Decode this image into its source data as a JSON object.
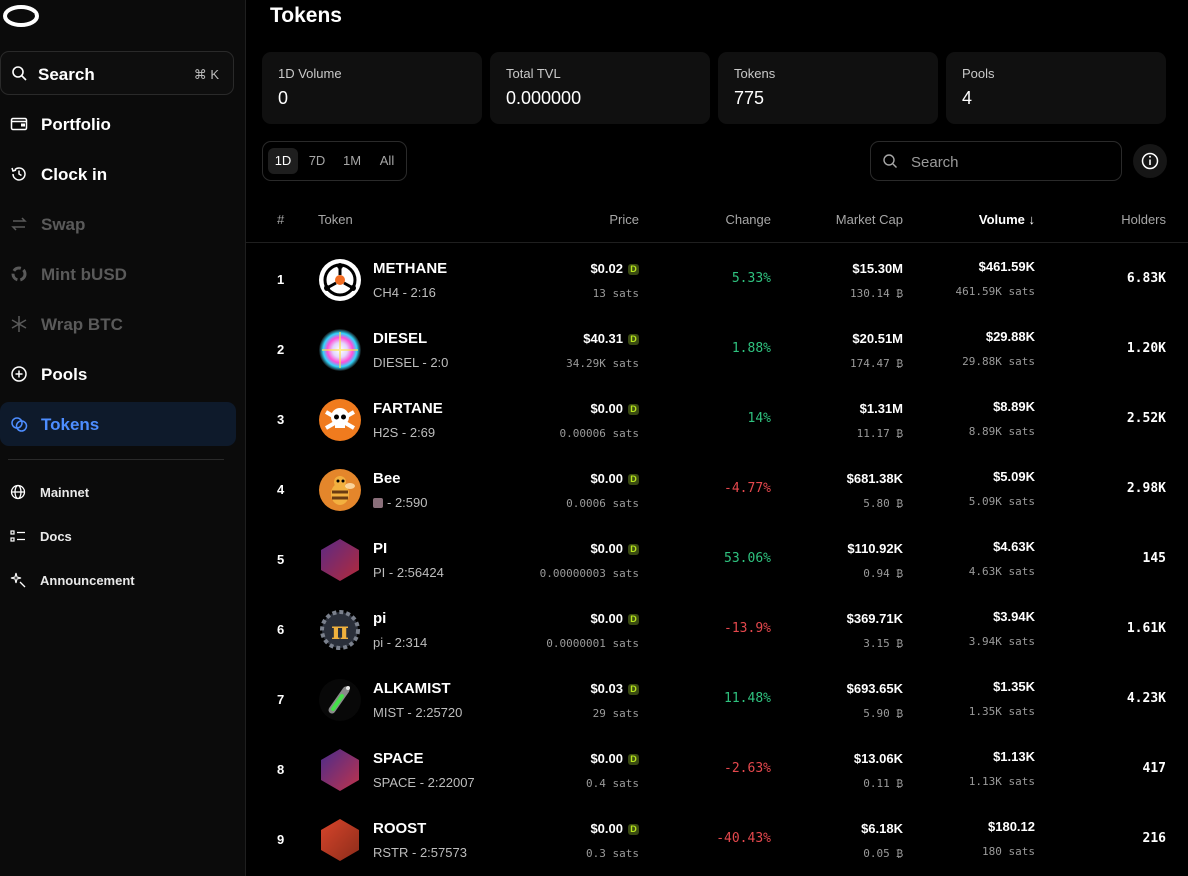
{
  "sidebar": {
    "search_label": "Search",
    "search_shortcut": "⌘ K",
    "items": [
      {
        "label": "Portfolio",
        "icon": "wallet-icon"
      },
      {
        "label": "Clock in",
        "icon": "clock-history-icon"
      },
      {
        "label": "Swap",
        "icon": "swap-icon"
      },
      {
        "label": "Mint bUSD",
        "icon": "mint-icon"
      },
      {
        "label": "Wrap BTC",
        "icon": "snowflake-icon"
      },
      {
        "label": "Pools",
        "icon": "plus-circle-icon"
      },
      {
        "label": "Tokens",
        "icon": "coins-icon"
      }
    ],
    "footer": [
      {
        "label": "Mainnet",
        "icon": "globe-icon"
      },
      {
        "label": "Docs",
        "icon": "list-icon"
      },
      {
        "label": "Announcement",
        "icon": "sparkle-icon"
      }
    ]
  },
  "page_title": "Tokens",
  "stats": [
    {
      "label": "1D Volume",
      "value": "0"
    },
    {
      "label": "Total TVL",
      "value": "0.000000"
    },
    {
      "label": "Tokens",
      "value": "775"
    },
    {
      "label": "Pools",
      "value": "4"
    }
  ],
  "ranges": [
    "1D",
    "7D",
    "1M",
    "All"
  ],
  "search_placeholder": "Search",
  "columns": {
    "rank": "#",
    "token": "Token",
    "price": "Price",
    "change": "Change",
    "market_cap": "Market Cap",
    "volume": "Volume ↓",
    "holders": "Holders"
  },
  "colors": {
    "accent": "#4d8dff",
    "positive": "#2fc27f",
    "negative": "#e5484d"
  },
  "tokens": [
    {
      "rank": "1",
      "name": "METHANE",
      "sub": "CH4 - 2:16",
      "price": "$0.02",
      "price_sats": "13 sats",
      "change": "5.33%",
      "dir": "up",
      "mcap": "$15.30M",
      "mcap_btc": "130.14 ₿",
      "vol": "$461.59K",
      "vol_sats": "461.59K sats",
      "holders": "6.83K",
      "icon": "methane-icon"
    },
    {
      "rank": "2",
      "name": "DIESEL",
      "sub": "DIESEL - 2:0",
      "price": "$40.31",
      "price_sats": "34.29K sats",
      "change": "1.88%",
      "dir": "up",
      "mcap": "$20.51M",
      "mcap_btc": "174.47 ₿",
      "vol": "$29.88K",
      "vol_sats": "29.88K sats",
      "holders": "1.20K",
      "icon": "diesel-icon"
    },
    {
      "rank": "3",
      "name": "FARTANE",
      "sub": "H2S - 2:69",
      "price": "$0.00",
      "price_sats": "0.00006 sats",
      "change": "14%",
      "dir": "up",
      "mcap": "$1.31M",
      "mcap_btc": "11.17 ₿",
      "vol": "$8.89K",
      "vol_sats": "8.89K sats",
      "holders": "2.52K",
      "icon": "skull-icon"
    },
    {
      "rank": "4",
      "name": "Bee",
      "sub": "- 2:590",
      "price": "$0.00",
      "price_sats": "0.0006 sats",
      "change": "-4.77%",
      "dir": "down",
      "mcap": "$681.38K",
      "mcap_btc": "5.80 ₿",
      "vol": "$5.09K",
      "vol_sats": "5.09K sats",
      "holders": "2.98K",
      "icon": "bee-icon"
    },
    {
      "rank": "5",
      "name": "PI",
      "sub": "PI - 2:56424",
      "price": "$0.00",
      "price_sats": "0.00000003 sats",
      "change": "53.06%",
      "dir": "up",
      "mcap": "$110.92K",
      "mcap_btc": "0.94 ₿",
      "vol": "$4.63K",
      "vol_sats": "4.63K sats",
      "holders": "145",
      "icon": "hexagon-icon"
    },
    {
      "rank": "6",
      "name": "pi",
      "sub": "pi - 2:314",
      "price": "$0.00",
      "price_sats": "0.0000001 sats",
      "change": "-13.9%",
      "dir": "down",
      "mcap": "$369.71K",
      "mcap_btc": "3.15 ₿",
      "vol": "$3.94K",
      "vol_sats": "3.94K sats",
      "holders": "1.61K",
      "icon": "pi-gear-icon"
    },
    {
      "rank": "7",
      "name": "ALKAMIST",
      "sub": "MIST - 2:25720",
      "price": "$0.03",
      "price_sats": "29 sats",
      "change": "11.48%",
      "dir": "up",
      "mcap": "$693.65K",
      "mcap_btc": "5.90 ₿",
      "vol": "$1.35K",
      "vol_sats": "1.35K sats",
      "holders": "4.23K",
      "icon": "potion-icon"
    },
    {
      "rank": "8",
      "name": "SPACE",
      "sub": "SPACE - 2:22007",
      "price": "$0.00",
      "price_sats": "0.4 sats",
      "change": "-2.63%",
      "dir": "down",
      "mcap": "$13.06K",
      "mcap_btc": "0.11 ₿",
      "vol": "$1.13K",
      "vol_sats": "1.13K sats",
      "holders": "417",
      "icon": "hexagon-icon"
    },
    {
      "rank": "9",
      "name": "ROOST",
      "sub": "RSTR - 2:57573",
      "price": "$0.00",
      "price_sats": "0.3 sats",
      "change": "-40.43%",
      "dir": "down",
      "mcap": "$6.18K",
      "mcap_btc": "0.05 ₿",
      "vol": "$180.12",
      "vol_sats": "180 sats",
      "holders": "216",
      "icon": "hexagon-icon"
    }
  ]
}
